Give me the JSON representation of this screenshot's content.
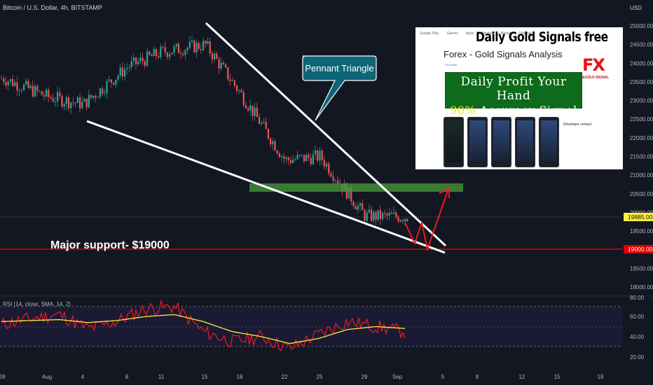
{
  "header": {
    "symbol_title": "Bitcoin / U.S. Dollar, 4h, BITSTAMP",
    "currency": "USD"
  },
  "price_axis": {
    "ticks": [
      "25000.00",
      "24500.00",
      "24000.00",
      "23500.00",
      "23000.00",
      "22500.00",
      "22000.00",
      "21500.00",
      "21000.00",
      "20500.00",
      "20000.00",
      "19500.00",
      "19000.00",
      "18500.00",
      "18000.00"
    ],
    "current_price_label": "19885.00",
    "support_price_label": "19000.00"
  },
  "rsi_axis": {
    "ticks": [
      "80.00",
      "60.00",
      "40.00",
      "20.00"
    ]
  },
  "time_axis": {
    "ticks": [
      "28",
      "Aug",
      "4",
      "8",
      "11",
      "15",
      "18",
      "22",
      "25",
      "29",
      "Sep",
      "5",
      "8",
      "12",
      "15",
      "19"
    ]
  },
  "annotations": {
    "pennant_label": "Pennant Triangle",
    "support_label": "Major support- $19000"
  },
  "indicator": {
    "label": "RSI (14, close, SMA, 14, 2)"
  },
  "colors": {
    "background": "#131722",
    "candle_up": "#26a69a",
    "candle_down": "#ef5350",
    "support_line": "#e00000",
    "callout": "#0e6577",
    "zone": "#4a9c3a",
    "rsi_line": "#ff1a1a",
    "rsi_sma": "#ffeb3b",
    "price_tag": "#ffeb3b"
  },
  "advert": {
    "store_name": "Google Play",
    "nav": [
      "Games",
      "Apps",
      "Movies",
      "Books",
      "Children"
    ],
    "title": "Daily Gold Signals free",
    "subtitle": "Forex - Gold Signals Analysis",
    "developer": "Fx Hunter",
    "badge_line1": "Daily Profit Your Hand",
    "badge_pct": "90%",
    "badge_line2": "Accuracy Signal",
    "logo_text": "FX",
    "logo_sub": "&GOLD SIGNAL",
    "developer_contact": "Developer contact"
  },
  "chart_data": [
    {
      "type": "candlestick",
      "title": "Bitcoin / U.S. Dollar, 4h, BITSTAMP",
      "y_unit": "USD",
      "ylim": [
        17800,
        25300
      ],
      "x_categories": [
        "28",
        "Aug",
        "4",
        "8",
        "11",
        "15",
        "18",
        "22",
        "25",
        "29",
        "Sep",
        "5",
        "8",
        "12",
        "15",
        "19"
      ],
      "close_path": [
        {
          "x": "28",
          "y": 23600
        },
        {
          "x": "Aug",
          "y": 23100
        },
        {
          "x": "4",
          "y": 22900
        },
        {
          "x": "8",
          "y": 23900
        },
        {
          "x": "11",
          "y": 24300
        },
        {
          "x": "15",
          "y": 24500
        },
        {
          "x": "18",
          "y": 23200
        },
        {
          "x": "22",
          "y": 21400
        },
        {
          "x": "25",
          "y": 21500
        },
        {
          "x": "29",
          "y": 19900
        },
        {
          "x": "Sep",
          "y": 19885
        }
      ],
      "horizontal_levels": [
        {
          "label": "Major support- $19000",
          "value": 19000
        },
        {
          "label": "19885.00",
          "value": 19885
        }
      ],
      "zone": {
        "from": 20550,
        "to": 20750
      },
      "annotation": "Pennant Triangle",
      "grid": false,
      "legend": "none"
    },
    {
      "type": "line",
      "title": "RSI (14, close, SMA, 14, 2)",
      "ylim": [
        15,
        82
      ],
      "levels": [
        70,
        50,
        30
      ],
      "series": [
        {
          "name": "RSI",
          "values": [
            52,
            58,
            62,
            48,
            55,
            68,
            70,
            45,
            35,
            40,
            28,
            42,
            55,
            50,
            45
          ]
        },
        {
          "name": "SMA",
          "values": [
            55,
            56,
            57,
            54,
            56,
            60,
            62,
            55,
            45,
            40,
            33,
            38,
            47,
            50,
            48
          ]
        }
      ]
    }
  ]
}
